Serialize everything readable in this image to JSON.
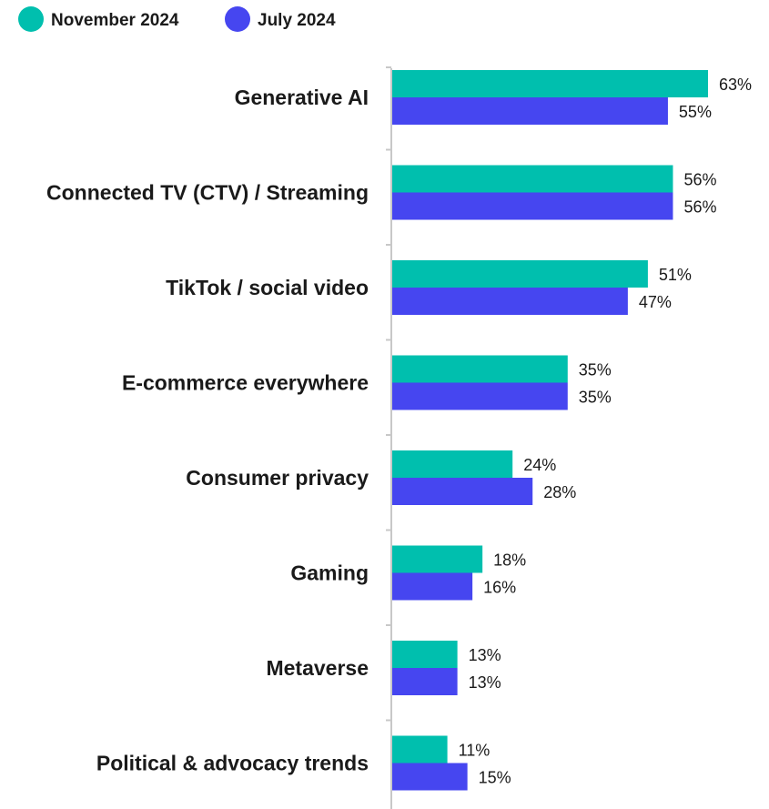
{
  "chart_data": {
    "type": "bar",
    "orientation": "horizontal",
    "legend_position": "top-left",
    "grid": false,
    "xlim": [
      0,
      63
    ],
    "categories": [
      "Generative AI",
      "Connected TV (CTV) / Streaming",
      "TikTok / social video",
      "E-commerce everywhere",
      "Consumer privacy",
      "Gaming",
      "Metaverse",
      "Political & advocacy trends"
    ],
    "series": [
      {
        "name": "November 2024",
        "color": "#00bfae",
        "values": [
          63,
          56,
          51,
          35,
          24,
          18,
          13,
          11
        ],
        "labels": [
          "63%",
          "56%",
          "51%",
          "35%",
          "24%",
          "18%",
          "13%",
          "11%"
        ]
      },
      {
        "name": "July 2024",
        "color": "#4646f0",
        "values": [
          55,
          56,
          47,
          35,
          28,
          16,
          13,
          15
        ],
        "labels": [
          "55%",
          "56%",
          "47%",
          "35%",
          "28%",
          "16%",
          "13%",
          "15%"
        ]
      }
    ]
  }
}
